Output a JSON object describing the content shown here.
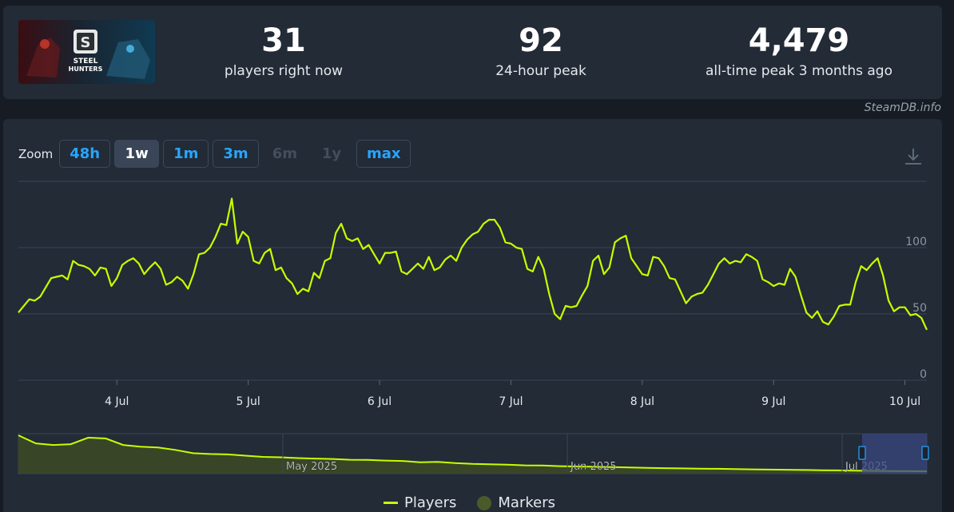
{
  "game": {
    "logo_text_top": "STEEL",
    "logo_text_bottom": "HUNTERS"
  },
  "stats": [
    {
      "value": "31",
      "label": "players right now"
    },
    {
      "value": "92",
      "label": "24-hour peak"
    },
    {
      "value": "4,479",
      "label": "all-time peak 3 months ago"
    }
  ],
  "credit": "SteamDB.info",
  "zoom": {
    "label": "Zoom",
    "buttons": [
      "48h",
      "1w",
      "1m",
      "3m",
      "6m",
      "1y",
      "max"
    ],
    "active": "1w",
    "disabled": [
      "6m",
      "1y"
    ]
  },
  "legend": {
    "players": "Players",
    "markers": "Markers"
  },
  "colors": {
    "series": "#c6ff00",
    "accent": "#27a5ff",
    "background": "#222b36",
    "navigator_selection": "#3a4780"
  },
  "chart_data": {
    "type": "line",
    "title": "",
    "xlabel": "",
    "ylabel": "",
    "x_ticks": [
      "4 Jul",
      "5 Jul",
      "6 Jul",
      "7 Jul",
      "8 Jul",
      "9 Jul",
      "10 Jul"
    ],
    "y_ticks": [
      0,
      50,
      100
    ],
    "ylim": [
      0,
      150
    ],
    "grid": true,
    "series": [
      {
        "name": "Players",
        "x_start": "3 Jul 06:00",
        "x_step_hours": 1,
        "values": [
          51,
          56,
          61,
          60,
          63,
          70,
          77,
          78,
          79,
          76,
          90,
          87,
          86,
          84,
          79,
          85,
          84,
          71,
          77,
          87,
          90,
          92,
          88,
          80,
          85,
          89,
          84,
          72,
          74,
          78,
          75,
          69,
          80,
          95,
          96,
          100,
          108,
          118,
          117,
          137,
          103,
          112,
          108,
          90,
          88,
          96,
          99,
          83,
          85,
          77,
          73,
          65,
          69,
          67,
          81,
          77,
          90,
          92,
          111,
          118,
          107,
          105,
          107,
          99,
          102,
          95,
          88,
          96,
          96,
          97,
          82,
          80,
          84,
          88,
          84,
          93,
          83,
          85,
          91,
          94,
          90,
          100,
          106,
          110,
          112,
          118,
          121,
          121,
          115,
          104,
          103,
          100,
          99,
          84,
          82,
          93,
          84,
          65,
          50,
          46,
          56,
          55,
          56,
          64,
          71,
          90,
          94,
          80,
          85,
          104,
          107,
          109,
          92,
          86,
          80,
          79,
          93,
          92,
          86,
          77,
          76,
          67,
          58,
          63,
          65,
          66,
          72,
          80,
          88,
          92,
          88,
          90,
          89,
          95,
          93,
          90,
          76,
          74,
          71,
          73,
          72,
          84,
          78,
          64,
          51,
          47,
          52,
          44,
          42,
          48,
          56,
          57,
          57,
          74,
          86,
          83,
          88,
          92,
          79,
          60,
          52,
          55,
          55,
          49,
          50,
          47,
          38
        ]
      }
    ],
    "navigator": {
      "x_ticks": [
        "May 2025",
        "Jun 2025",
        "Jul 2025"
      ],
      "values": [
        4479,
        3500,
        3300,
        3400,
        4200,
        4100,
        3300,
        3100,
        3000,
        2700,
        2300,
        2200,
        2150,
        2000,
        1850,
        1800,
        1700,
        1650,
        1600,
        1500,
        1480,
        1400,
        1350,
        1200,
        1250,
        1100,
        1000,
        950,
        900,
        820,
        800,
        720,
        680,
        640,
        600,
        560,
        520,
        480,
        450,
        420,
        400,
        360,
        330,
        300,
        280,
        250,
        220,
        200,
        180,
        150,
        130,
        110,
        100
      ]
    }
  }
}
